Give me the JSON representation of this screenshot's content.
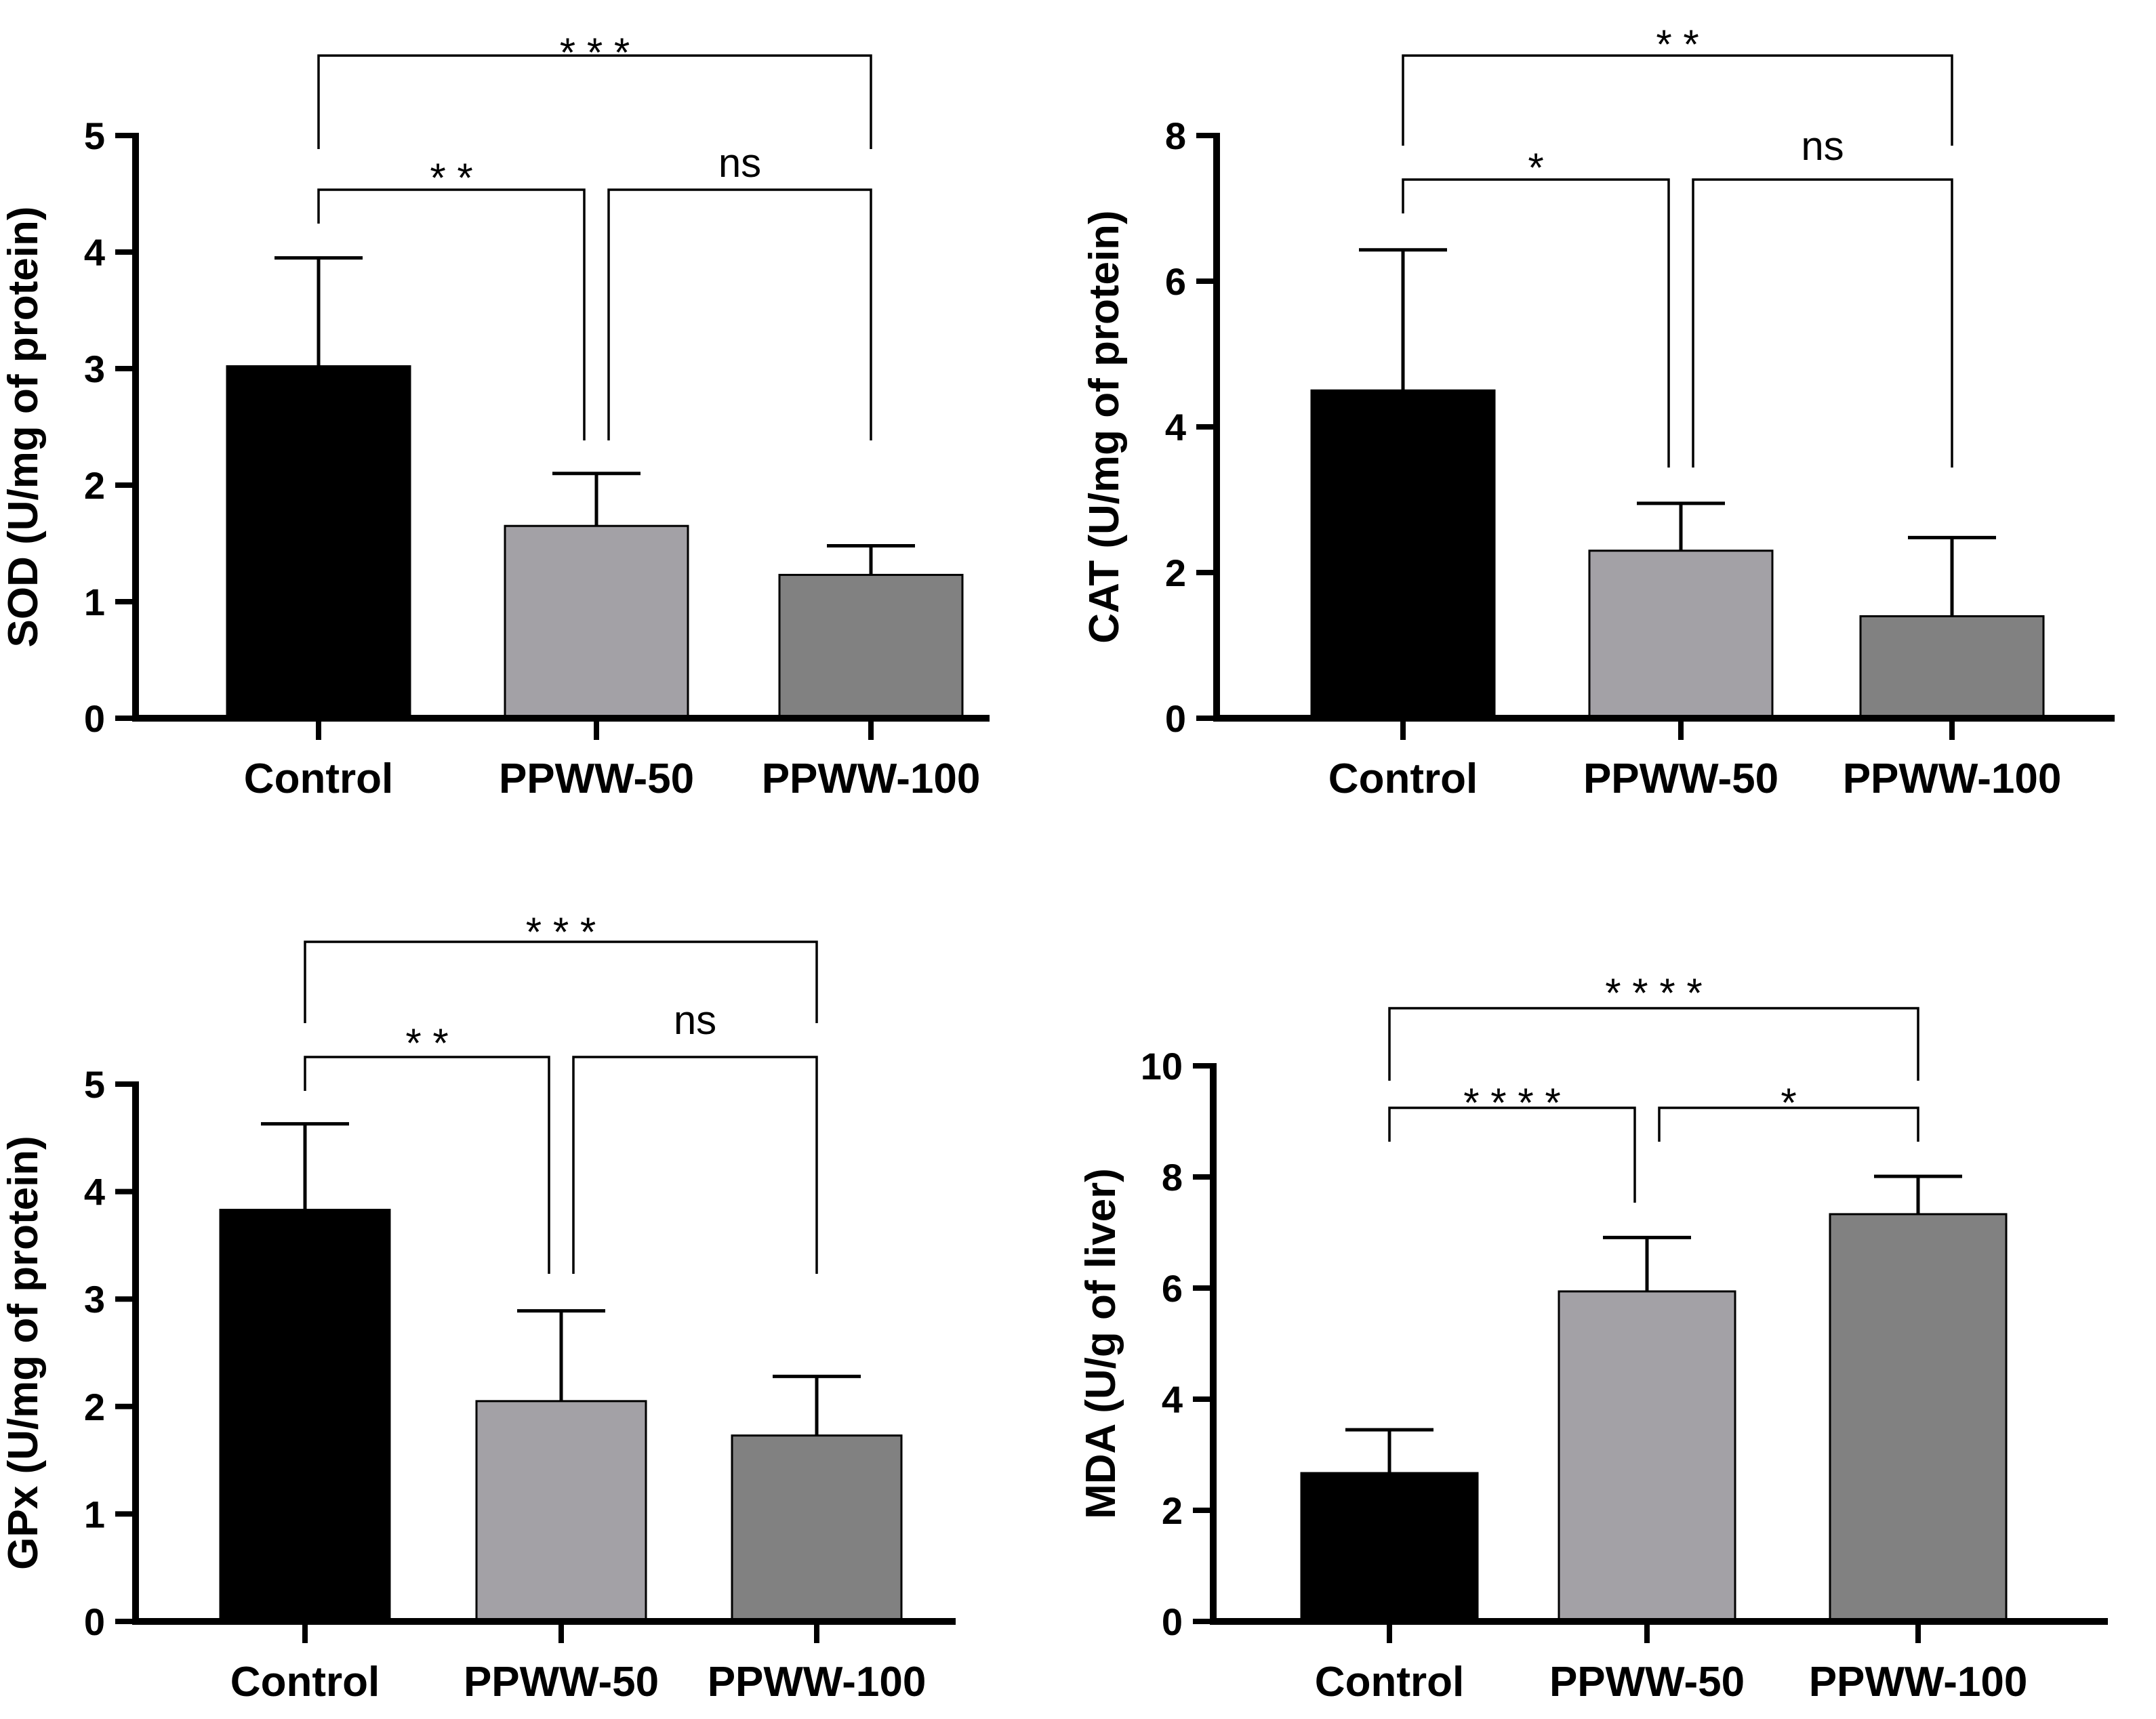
{
  "chart_data": [
    {
      "type": "bar",
      "categories": [
        "Control",
        "PPWW-50",
        "PPWW-100"
      ],
      "values": [
        3.02,
        1.65,
        1.23
      ],
      "errors": [
        0.93,
        0.45,
        0.25
      ],
      "ylabel": "SOD (U/mg of protein)",
      "ylim": [
        0,
        5
      ],
      "yticks": [
        "0",
        "1",
        "2",
        "3",
        "4",
        "5"
      ],
      "bar_colors": [
        "#000000",
        "#a3a1a6",
        "#818181"
      ],
      "significance": [
        {
          "from": "Control",
          "to": "PPWW-100",
          "label": "* * *"
        },
        {
          "from": "Control",
          "to": "PPWW-50",
          "label": "* *"
        },
        {
          "from": "PPWW-50",
          "to": "PPWW-100",
          "label": "ns"
        }
      ]
    },
    {
      "type": "bar",
      "categories": [
        "Control",
        "PPWW-50",
        "PPWW-100"
      ],
      "values": [
        4.5,
        2.3,
        1.4
      ],
      "errors": [
        1.93,
        0.65,
        1.08
      ],
      "ylabel": "CAT (U/mg of protein)",
      "ylim": [
        0,
        8
      ],
      "yticks": [
        "0",
        "2",
        "4",
        "6",
        "8"
      ],
      "bar_colors": [
        "#000000",
        "#a3a1a6",
        "#818181"
      ],
      "significance": [
        {
          "from": "Control",
          "to": "PPWW-100",
          "label": "* *"
        },
        {
          "from": "Control",
          "to": "PPWW-50",
          "label": "*"
        },
        {
          "from": "PPWW-50",
          "to": "PPWW-100",
          "label": "ns"
        }
      ]
    },
    {
      "type": "bar",
      "categories": [
        "Control",
        "PPWW-50",
        "PPWW-100"
      ],
      "values": [
        3.83,
        2.05,
        1.73
      ],
      "errors": [
        0.8,
        0.84,
        0.55
      ],
      "ylabel": "GPx (U/mg of protein)",
      "ylim": [
        0,
        5
      ],
      "yticks": [
        "0",
        "1",
        "2",
        "3",
        "4",
        "5"
      ],
      "bar_colors": [
        "#000000",
        "#a3a1a6",
        "#818181"
      ],
      "significance": [
        {
          "from": "Control",
          "to": "PPWW-100",
          "label": "* * *"
        },
        {
          "from": "Control",
          "to": "PPWW-50",
          "label": "* *"
        },
        {
          "from": "PPWW-50",
          "to": "PPWW-100",
          "label": "ns"
        }
      ]
    },
    {
      "type": "bar",
      "categories": [
        "Control",
        "PPWW-50",
        "PPWW-100"
      ],
      "values": [
        2.67,
        5.94,
        7.33
      ],
      "errors": [
        0.78,
        0.97,
        0.68
      ],
      "ylabel": "MDA (U/g of liver)",
      "ylim": [
        0,
        10
      ],
      "yticks": [
        "0",
        "2",
        "4",
        "6",
        "8",
        "10"
      ],
      "bar_colors": [
        "#000000",
        "#a3a1a6",
        "#818181"
      ],
      "significance": [
        {
          "from": "Control",
          "to": "PPWW-100",
          "label": "* * * *"
        },
        {
          "from": "Control",
          "to": "PPWW-50",
          "label": "* * * *"
        },
        {
          "from": "PPWW-50",
          "to": "PPWW-100",
          "label": "*"
        }
      ]
    }
  ]
}
